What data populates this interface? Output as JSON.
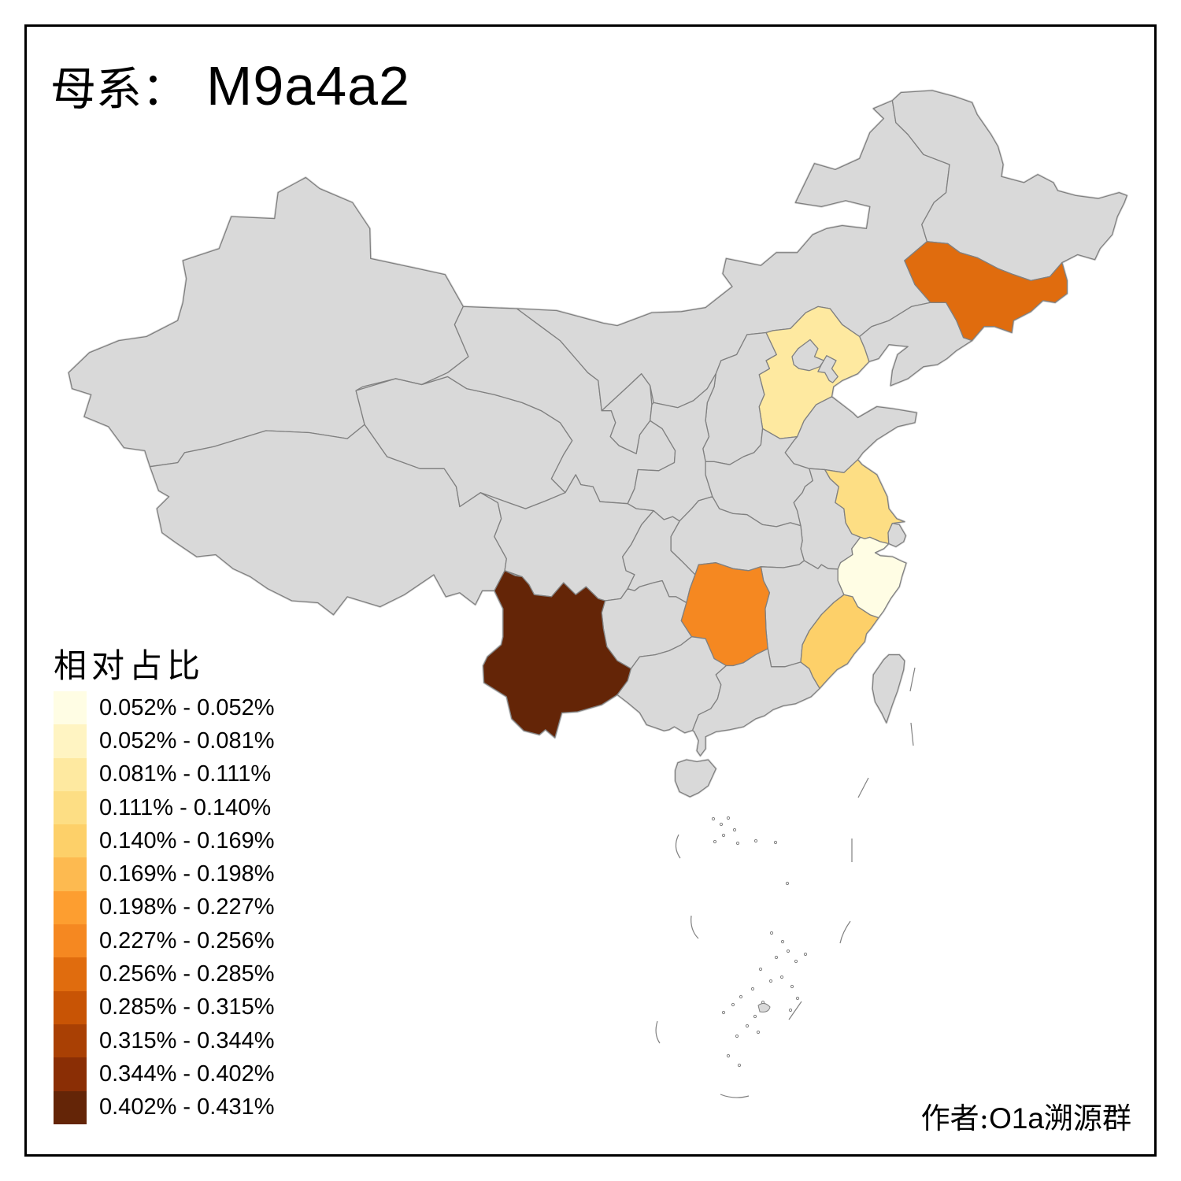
{
  "title": {
    "prefix": "母系：",
    "haplogroup": "M9a4a2"
  },
  "legend": {
    "title": "相对占比",
    "items": [
      {
        "range": "0.052% - 0.052%",
        "color": "#FFFDE4"
      },
      {
        "range": "0.052% - 0.081%",
        "color": "#FFF4C2"
      },
      {
        "range": "0.081% - 0.111%",
        "color": "#FEE9A0"
      },
      {
        "range": "0.111% - 0.140%",
        "color": "#FDDE84"
      },
      {
        "range": "0.140% - 0.169%",
        "color": "#FDD069"
      },
      {
        "range": "0.169% - 0.198%",
        "color": "#FDBA50"
      },
      {
        "range": "0.198% - 0.227%",
        "color": "#FD9E30"
      },
      {
        "range": "0.227% - 0.256%",
        "color": "#F58821"
      },
      {
        "range": "0.256% - 0.285%",
        "color": "#E06C0E"
      },
      {
        "range": "0.285% - 0.315%",
        "color": "#C85405"
      },
      {
        "range": "0.315% - 0.344%",
        "color": "#A94004"
      },
      {
        "range": "0.344% - 0.402%",
        "color": "#8A2E05"
      },
      {
        "range": "0.402% - 0.431%",
        "color": "#642507"
      }
    ]
  },
  "attribution": {
    "label": "作者:",
    "group_latin": "O1a",
    "group_cn": "溯源群"
  },
  "map": {
    "land_color": "#D9D9D9",
    "border_color": "#808080",
    "sea_color": "#FFFFFF",
    "frame_color": "#000000",
    "highlighted_provinces": [
      {
        "name": "Zhejiang",
        "range": "0.052% - 0.052%",
        "color": "#FFFDE4"
      },
      {
        "name": "Hebei",
        "range": "0.081% - 0.111%",
        "color": "#FEE9A0"
      },
      {
        "name": "Jiangsu",
        "range": "0.111% - 0.140%",
        "color": "#FDDE84"
      },
      {
        "name": "Fujian",
        "range": "0.140% - 0.169%",
        "color": "#FDD069"
      },
      {
        "name": "Hunan",
        "range": "0.227% - 0.256%",
        "color": "#F58821"
      },
      {
        "name": "Jilin",
        "range": "0.256% - 0.285%",
        "color": "#E06C0E"
      },
      {
        "name": "Yunnan",
        "range": "0.402% - 0.431%",
        "color": "#642507"
      }
    ]
  }
}
